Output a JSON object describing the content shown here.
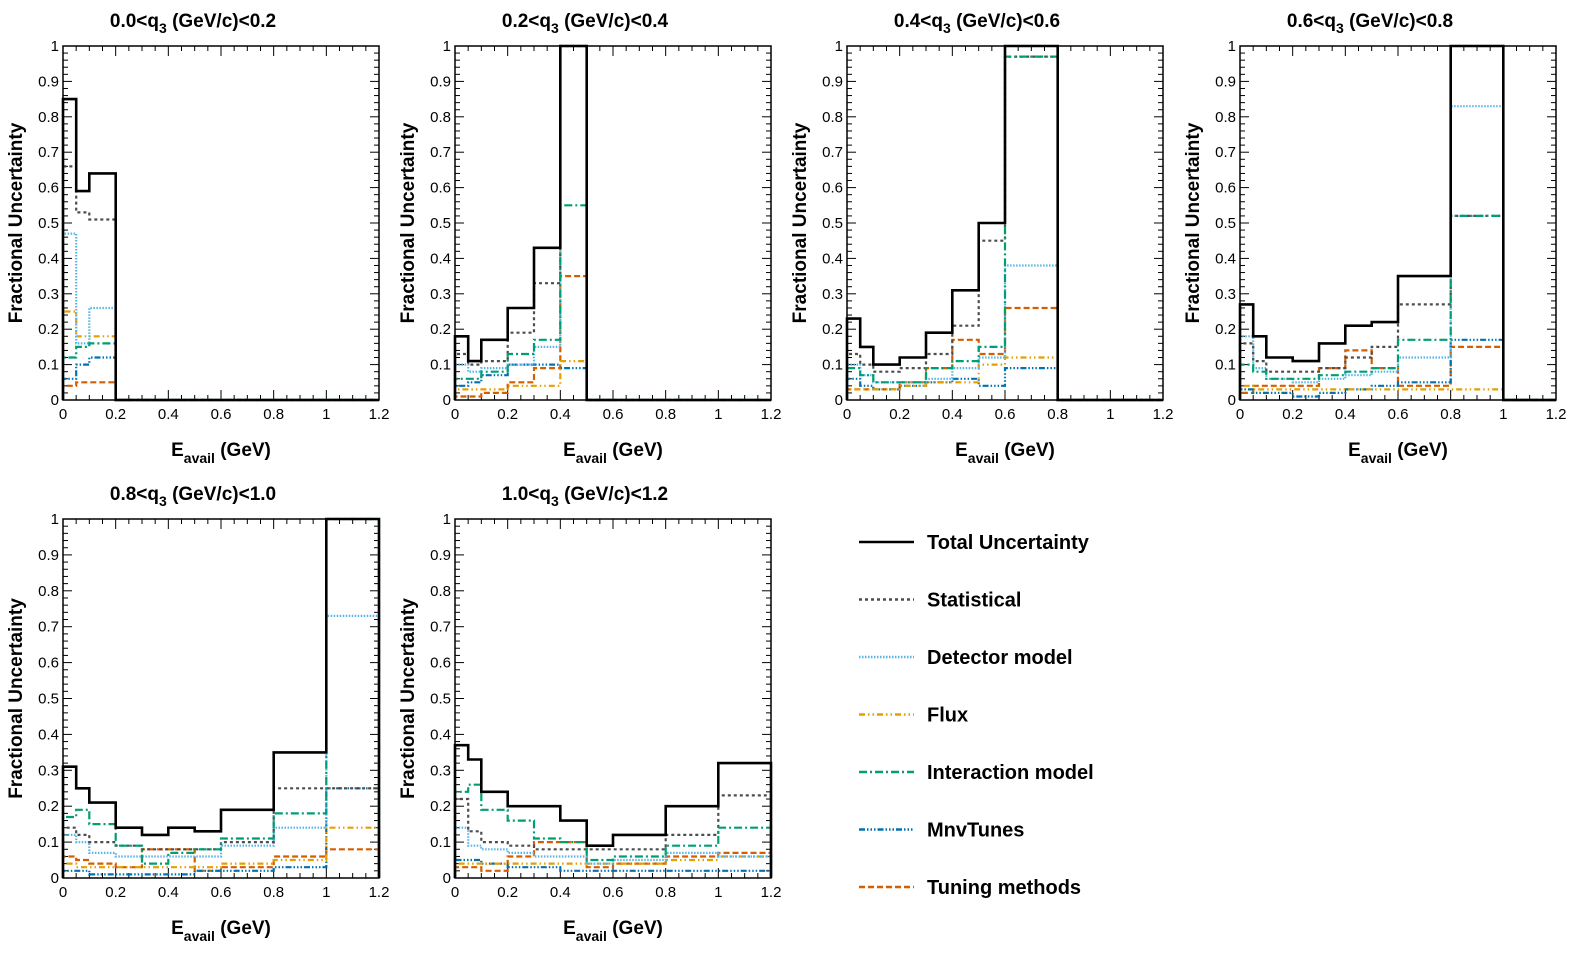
{
  "figure": {
    "ylabel": "Fractional Uncertainty",
    "xlabel_main": "E",
    "xlabel_sub": "avail",
    "xlabel_unit": " (GeV)"
  },
  "style": {
    "Total Uncertainty": {
      "color": "#000000",
      "dash": ""
    },
    "Statistical": {
      "color": "#4d4d4d",
      "dash": "3 3"
    },
    "Detector model": {
      "color": "#56b4e9",
      "dash": "1.5 1.5"
    },
    "Flux": {
      "color": "#e69f00",
      "dash": "6 3 1.5 3 1.5 3"
    },
    "Interaction model": {
      "color": "#009e73",
      "dash": "8 3 2 3"
    },
    "MnvTunes": {
      "color": "#0072b2",
      "dash": "6 2 1.5 2 1.5 2 1.5 2"
    },
    "Tuning methods": {
      "color": "#d55e00",
      "dash": "6 3"
    }
  },
  "chart_data": [
    {
      "type": "step",
      "title_pre": "0.0<q",
      "title_sub": "3",
      "title_post": " (GeV/c)<0.2",
      "xlim": [
        0,
        1.2
      ],
      "ylim": [
        0,
        1
      ],
      "xticks": [
        "0",
        "0.2",
        "0.4",
        "0.6",
        "0.8",
        "1",
        "1.2"
      ],
      "yticks": [
        "0",
        "0.1",
        "0.2",
        "0.3",
        "0.4",
        "0.5",
        "0.6",
        "0.7",
        "0.8",
        "0.9",
        "1"
      ],
      "bin_edges": [
        0,
        0.05,
        0.1,
        0.2,
        0.3,
        0.4,
        0.5,
        0.6,
        0.8,
        1.0,
        1.2
      ],
      "series": [
        {
          "name": "Total Uncertainty",
          "values": [
            0.85,
            0.59,
            0.64,
            0,
            0,
            0,
            0,
            0,
            0,
            0
          ]
        },
        {
          "name": "Statistical",
          "values": [
            0.66,
            0.53,
            0.51,
            0,
            0,
            0,
            0,
            0,
            0,
            0
          ]
        },
        {
          "name": "Detector model",
          "values": [
            0.47,
            0.16,
            0.26,
            0,
            0,
            0,
            0,
            0,
            0,
            0
          ]
        },
        {
          "name": "Flux",
          "values": [
            0.25,
            0.18,
            0.18,
            0,
            0,
            0,
            0,
            0,
            0,
            0
          ]
        },
        {
          "name": "Interaction model",
          "values": [
            0.12,
            0.15,
            0.16,
            0,
            0,
            0,
            0,
            0,
            0,
            0
          ]
        },
        {
          "name": "MnvTunes",
          "values": [
            0.06,
            0.1,
            0.12,
            0,
            0,
            0,
            0,
            0,
            0,
            0
          ]
        },
        {
          "name": "Tuning methods",
          "values": [
            0.04,
            0.05,
            0.05,
            0,
            0,
            0,
            0,
            0,
            0,
            0
          ]
        }
      ]
    },
    {
      "type": "step",
      "title_pre": "0.2<q",
      "title_sub": "3",
      "title_post": " (GeV/c)<0.4",
      "xlim": [
        0,
        1.2
      ],
      "ylim": [
        0,
        1
      ],
      "xticks": [
        "0",
        "0.2",
        "0.4",
        "0.6",
        "0.8",
        "1",
        "1.2"
      ],
      "yticks": [
        "0",
        "0.1",
        "0.2",
        "0.3",
        "0.4",
        "0.5",
        "0.6",
        "0.7",
        "0.8",
        "0.9",
        "1"
      ],
      "bin_edges": [
        0,
        0.05,
        0.1,
        0.2,
        0.3,
        0.4,
        0.5,
        0.6,
        0.8,
        1.0,
        1.2
      ],
      "series": [
        {
          "name": "Total Uncertainty",
          "values": [
            0.18,
            0.11,
            0.17,
            0.26,
            0.43,
            1.0,
            0,
            0,
            0,
            0
          ]
        },
        {
          "name": "Statistical",
          "values": [
            0.13,
            0.1,
            0.11,
            0.19,
            0.33,
            1.0,
            0,
            0,
            0,
            0
          ]
        },
        {
          "name": "Detector model",
          "values": [
            0.1,
            0.08,
            0.09,
            0.1,
            0.15,
            1.0,
            0,
            0,
            0,
            0
          ]
        },
        {
          "name": "Flux",
          "values": [
            0.03,
            0.03,
            0.03,
            0.04,
            0.04,
            0.11,
            0,
            0,
            0,
            0
          ]
        },
        {
          "name": "Interaction model",
          "values": [
            0.06,
            0.06,
            0.08,
            0.13,
            0.17,
            0.55,
            0,
            0,
            0,
            0
          ]
        },
        {
          "name": "MnvTunes",
          "values": [
            0.04,
            0.05,
            0.07,
            0.1,
            0.1,
            0.09,
            0,
            0,
            0,
            0
          ]
        },
        {
          "name": "Tuning methods",
          "values": [
            0.01,
            0.01,
            0.02,
            0.05,
            0.09,
            0.35,
            0,
            0,
            0,
            0
          ]
        }
      ]
    },
    {
      "type": "step",
      "title_pre": "0.4<q",
      "title_sub": "3",
      "title_post": " (GeV/c)<0.6",
      "xlim": [
        0,
        1.2
      ],
      "ylim": [
        0,
        1
      ],
      "xticks": [
        "0",
        "0.2",
        "0.4",
        "0.6",
        "0.8",
        "1",
        "1.2"
      ],
      "yticks": [
        "0",
        "0.1",
        "0.2",
        "0.3",
        "0.4",
        "0.5",
        "0.6",
        "0.7",
        "0.8",
        "0.9",
        "1"
      ],
      "bin_edges": [
        0,
        0.05,
        0.1,
        0.2,
        0.3,
        0.4,
        0.5,
        0.6,
        0.8,
        1.0,
        1.2
      ],
      "series": [
        {
          "name": "Total Uncertainty",
          "values": [
            0.23,
            0.15,
            0.1,
            0.12,
            0.19,
            0.31,
            0.5,
            1.0,
            0,
            0
          ]
        },
        {
          "name": "Statistical",
          "values": [
            0.13,
            0.1,
            0.08,
            0.09,
            0.13,
            0.21,
            0.45,
            0.97,
            0,
            0
          ]
        },
        {
          "name": "Detector model",
          "values": [
            0.1,
            0.07,
            0.05,
            0.05,
            0.06,
            0.09,
            0.12,
            0.38,
            0,
            0
          ]
        },
        {
          "name": "Flux",
          "values": [
            0.03,
            0.03,
            0.03,
            0.04,
            0.05,
            0.05,
            0.1,
            0.12,
            0,
            0
          ]
        },
        {
          "name": "Interaction model",
          "values": [
            0.09,
            0.07,
            0.05,
            0.05,
            0.09,
            0.11,
            0.15,
            0.97,
            0,
            0
          ]
        },
        {
          "name": "MnvTunes",
          "values": [
            0.06,
            0.04,
            0.03,
            0.04,
            0.05,
            0.06,
            0.04,
            0.09,
            0,
            0
          ]
        },
        {
          "name": "Tuning methods",
          "values": [
            0.03,
            0.03,
            0.03,
            0.05,
            0.09,
            0.17,
            0.13,
            0.26,
            0,
            0
          ]
        }
      ]
    },
    {
      "type": "step",
      "title_pre": "0.6<q",
      "title_sub": "3",
      "title_post": " (GeV/c)<0.8",
      "xlim": [
        0,
        1.2
      ],
      "ylim": [
        0,
        1
      ],
      "xticks": [
        "0",
        "0.2",
        "0.4",
        "0.6",
        "0.8",
        "1",
        "1.2"
      ],
      "yticks": [
        "0",
        "0.1",
        "0.2",
        "0.3",
        "0.4",
        "0.5",
        "0.6",
        "0.7",
        "0.8",
        "0.9",
        "1"
      ],
      "bin_edges": [
        0,
        0.05,
        0.1,
        0.2,
        0.3,
        0.4,
        0.5,
        0.6,
        0.8,
        1.0,
        1.2
      ],
      "series": [
        {
          "name": "Total Uncertainty",
          "values": [
            0.27,
            0.18,
            0.12,
            0.11,
            0.16,
            0.21,
            0.22,
            0.35,
            1.0,
            0
          ]
        },
        {
          "name": "Statistical",
          "values": [
            0.16,
            0.11,
            0.08,
            0.08,
            0.09,
            0.12,
            0.15,
            0.27,
            0.52,
            0
          ]
        },
        {
          "name": "Detector model",
          "values": [
            0.18,
            0.09,
            0.06,
            0.05,
            0.06,
            0.07,
            0.08,
            0.12,
            0.83,
            0
          ]
        },
        {
          "name": "Flux",
          "values": [
            0.04,
            0.03,
            0.03,
            0.03,
            0.03,
            0.03,
            0.03,
            0.03,
            0.03,
            0
          ]
        },
        {
          "name": "Interaction model",
          "values": [
            0.1,
            0.08,
            0.06,
            0.06,
            0.07,
            0.08,
            0.09,
            0.17,
            0.52,
            0
          ]
        },
        {
          "name": "MnvTunes",
          "values": [
            0.03,
            0.02,
            0.02,
            0.01,
            0.02,
            0.03,
            0.04,
            0.05,
            0.17,
            0
          ]
        },
        {
          "name": "Tuning methods",
          "values": [
            0.02,
            0.04,
            0.04,
            0.04,
            0.09,
            0.14,
            0.09,
            0.04,
            0.15,
            0
          ]
        }
      ]
    },
    {
      "type": "step",
      "title_pre": "0.8<q",
      "title_sub": "3",
      "title_post": " (GeV/c)<1.0",
      "xlim": [
        0,
        1.2
      ],
      "ylim": [
        0,
        1
      ],
      "xticks": [
        "0",
        "0.2",
        "0.4",
        "0.6",
        "0.8",
        "1",
        "1.2"
      ],
      "yticks": [
        "0",
        "0.1",
        "0.2",
        "0.3",
        "0.4",
        "0.5",
        "0.6",
        "0.7",
        "0.8",
        "0.9",
        "1"
      ],
      "bin_edges": [
        0,
        0.05,
        0.1,
        0.2,
        0.3,
        0.4,
        0.5,
        0.6,
        0.8,
        1.0,
        1.2
      ],
      "series": [
        {
          "name": "Total Uncertainty",
          "values": [
            0.31,
            0.25,
            0.21,
            0.14,
            0.12,
            0.14,
            0.13,
            0.19,
            0.35,
            1.0
          ]
        },
        {
          "name": "Statistical",
          "values": [
            0.14,
            0.12,
            0.1,
            0.09,
            0.08,
            0.08,
            0.08,
            0.1,
            0.25,
            0.25
          ]
        },
        {
          "name": "Detector model",
          "values": [
            0.12,
            0.1,
            0.07,
            0.06,
            0.06,
            0.06,
            0.06,
            0.09,
            0.14,
            0.73
          ]
        },
        {
          "name": "Flux",
          "values": [
            0.04,
            0.03,
            0.03,
            0.03,
            0.03,
            0.03,
            0.03,
            0.04,
            0.05,
            0.14
          ]
        },
        {
          "name": "Interaction model",
          "values": [
            0.17,
            0.19,
            0.15,
            0.09,
            0.04,
            0.07,
            0.08,
            0.11,
            0.18,
            1.0
          ]
        },
        {
          "name": "MnvTunes",
          "values": [
            0.02,
            0.02,
            0.01,
            0.01,
            0.01,
            0.01,
            0.02,
            0.02,
            0.03,
            0.25
          ]
        },
        {
          "name": "Tuning methods",
          "values": [
            0.06,
            0.05,
            0.04,
            0.03,
            0.08,
            0.08,
            0.02,
            0.03,
            0.06,
            0.08
          ]
        }
      ]
    },
    {
      "type": "step",
      "title_pre": "1.0<q",
      "title_sub": "3",
      "title_post": " (GeV/c)<1.2",
      "xlim": [
        0,
        1.2
      ],
      "ylim": [
        0,
        1
      ],
      "xticks": [
        "0",
        "0.2",
        "0.4",
        "0.6",
        "0.8",
        "1",
        "1.2"
      ],
      "yticks": [
        "0",
        "0.1",
        "0.2",
        "0.3",
        "0.4",
        "0.5",
        "0.6",
        "0.7",
        "0.8",
        "0.9",
        "1"
      ],
      "bin_edges": [
        0,
        0.05,
        0.1,
        0.2,
        0.3,
        0.4,
        0.5,
        0.6,
        0.8,
        1.0,
        1.2
      ],
      "series": [
        {
          "name": "Total Uncertainty",
          "values": [
            0.37,
            0.33,
            0.24,
            0.2,
            0.2,
            0.16,
            0.09,
            0.12,
            0.2,
            0.32
          ]
        },
        {
          "name": "Statistical",
          "values": [
            0.22,
            0.13,
            0.1,
            0.09,
            0.08,
            0.08,
            0.08,
            0.08,
            0.12,
            0.23
          ]
        },
        {
          "name": "Detector model",
          "values": [
            0.14,
            0.09,
            0.08,
            0.07,
            0.06,
            0.06,
            0.04,
            0.05,
            0.07,
            0.06
          ]
        },
        {
          "name": "Flux",
          "values": [
            0.04,
            0.04,
            0.04,
            0.04,
            0.04,
            0.04,
            0.04,
            0.04,
            0.05,
            0.06
          ]
        },
        {
          "name": "Interaction model",
          "values": [
            0.24,
            0.26,
            0.19,
            0.16,
            0.11,
            0.1,
            0.05,
            0.06,
            0.09,
            0.14
          ]
        },
        {
          "name": "MnvTunes",
          "values": [
            0.05,
            0.05,
            0.04,
            0.03,
            0.03,
            0.02,
            0.02,
            0.02,
            0.02,
            0.02
          ]
        },
        {
          "name": "Tuning methods",
          "values": [
            0.03,
            0.03,
            0.02,
            0.06,
            0.1,
            0.1,
            0.03,
            0.04,
            0.06,
            0.07
          ]
        }
      ]
    }
  ],
  "legend": {
    "items": [
      "Total Uncertainty",
      "Statistical",
      "Detector model",
      "Flux",
      "Interaction model",
      "MnvTunes",
      "Tuning methods"
    ]
  }
}
